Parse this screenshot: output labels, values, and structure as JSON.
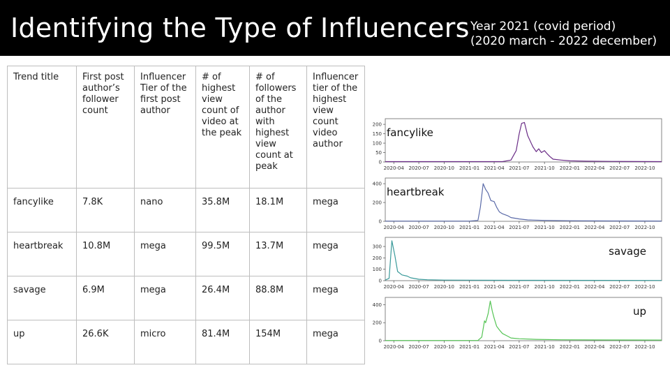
{
  "header": {
    "title": "Identifying the Type of Influencers",
    "subtitle_line1": "Year 2021 (covid period)",
    "subtitle_line2": "(2020 march - 2022 december)"
  },
  "table": {
    "headers": [
      "Trend title",
      "First post author’s follower count",
      "Influencer Tier of the first post author",
      "# of highest view count of video at the peak",
      "# of followers of the author with highest view count at peak",
      "Influencer tier of the highest view count video author"
    ],
    "rows": [
      [
        "fancylike",
        "7.8K",
        "nano",
        "35.8M",
        "18.1M",
        "mega"
      ],
      [
        "heartbreak",
        "10.8M",
        "mega",
        "99.5M",
        "13.7M",
        "mega"
      ],
      [
        "savage",
        "6.9M",
        "mega",
        "26.4M",
        "88.8M",
        "mega"
      ],
      [
        "up",
        "26.6K",
        "micro",
        "81.4M",
        "154M",
        "mega"
      ]
    ]
  },
  "chart_data": [
    {
      "type": "line",
      "label": "fancylike",
      "label_position": "top-left",
      "color": "#6a2c86",
      "ylim": [
        0,
        230
      ],
      "yticks": [
        0,
        50,
        100,
        150,
        200
      ],
      "x_start": "2020-03",
      "x_end": "2022-12",
      "xticks": [
        "2020-04",
        "2020-07",
        "2020-10",
        "2021-01",
        "2021-04",
        "2021-07",
        "2021-10",
        "2022-01",
        "2022-04",
        "2022-07",
        "2022-10"
      ],
      "points": [
        [
          "2020-03",
          2
        ],
        [
          "2021-05",
          2
        ],
        [
          "2021-06",
          10
        ],
        [
          "2021-06-20",
          60
        ],
        [
          "2021-07",
          150
        ],
        [
          "2021-07-10",
          205
        ],
        [
          "2021-07-20",
          210
        ],
        [
          "2021-08",
          140
        ],
        [
          "2021-08-20",
          80
        ],
        [
          "2021-09",
          55
        ],
        [
          "2021-09-10",
          70
        ],
        [
          "2021-09-20",
          50
        ],
        [
          "2021-10",
          60
        ],
        [
          "2021-10-10",
          45
        ],
        [
          "2021-10-20",
          30
        ],
        [
          "2021-11",
          15
        ],
        [
          "2021-12",
          10
        ],
        [
          "2022-01",
          6
        ],
        [
          "2022-03",
          4
        ],
        [
          "2022-06",
          3
        ],
        [
          "2022-12",
          2
        ]
      ]
    },
    {
      "type": "line",
      "label": "heartbreak",
      "label_position": "top-left",
      "color": "#5a6aa8",
      "ylim": [
        0,
        460
      ],
      "yticks": [
        0,
        200,
        400
      ],
      "x_start": "2020-03",
      "x_end": "2022-12",
      "xticks": [
        "2020-04",
        "2020-07",
        "2020-10",
        "2021-01",
        "2021-04",
        "2021-07",
        "2021-10",
        "2022-01",
        "2022-04",
        "2022-07",
        "2022-10"
      ],
      "points": [
        [
          "2020-03",
          2
        ],
        [
          "2021-01",
          2
        ],
        [
          "2021-02",
          10
        ],
        [
          "2021-02-10",
          150
        ],
        [
          "2021-02-20",
          400
        ],
        [
          "2021-03",
          340
        ],
        [
          "2021-03-10",
          300
        ],
        [
          "2021-03-20",
          220
        ],
        [
          "2021-04",
          210
        ],
        [
          "2021-04-10",
          150
        ],
        [
          "2021-04-20",
          100
        ],
        [
          "2021-05",
          80
        ],
        [
          "2021-05-20",
          60
        ],
        [
          "2021-06",
          40
        ],
        [
          "2021-07",
          25
        ],
        [
          "2021-08",
          15
        ],
        [
          "2021-10",
          10
        ],
        [
          "2022-01",
          6
        ],
        [
          "2022-06",
          4
        ],
        [
          "2022-12",
          3
        ]
      ]
    },
    {
      "type": "line",
      "label": "savage",
      "label_position": "top-right",
      "color": "#3a9a9a",
      "ylim": [
        0,
        380
      ],
      "yticks": [
        0,
        100,
        200,
        300
      ],
      "x_start": "2020-03",
      "x_end": "2022-12",
      "xticks": [
        "2020-04",
        "2020-07",
        "2020-10",
        "2021-01",
        "2021-04",
        "2021-07",
        "2021-10",
        "2022-01",
        "2022-04",
        "2022-07",
        "2022-10"
      ],
      "points": [
        [
          "2020-03",
          5
        ],
        [
          "2020-03-15",
          20
        ],
        [
          "2020-03-25",
          350
        ],
        [
          "2020-04-05",
          220
        ],
        [
          "2020-04-15",
          80
        ],
        [
          "2020-05",
          50
        ],
        [
          "2020-05-20",
          40
        ],
        [
          "2020-06",
          25
        ],
        [
          "2020-07",
          12
        ],
        [
          "2020-08",
          8
        ],
        [
          "2020-10",
          5
        ],
        [
          "2021-01",
          4
        ],
        [
          "2021-06",
          3
        ],
        [
          "2022-12",
          2
        ]
      ]
    },
    {
      "type": "line",
      "label": "up",
      "label_position": "top-right",
      "color": "#55c455",
      "ylim": [
        0,
        480
      ],
      "yticks": [
        0,
        200,
        400
      ],
      "x_start": "2020-03",
      "x_end": "2022-12",
      "xticks": [
        "2020-04",
        "2020-07",
        "2020-10",
        "2021-01",
        "2021-04",
        "2021-07",
        "2021-10",
        "2022-01",
        "2022-04",
        "2022-07",
        "2022-10"
      ],
      "points": [
        [
          "2020-03",
          2
        ],
        [
          "2021-02",
          2
        ],
        [
          "2021-02-15",
          40
        ],
        [
          "2021-02-25",
          220
        ],
        [
          "2021-03",
          200
        ],
        [
          "2021-03-10",
          300
        ],
        [
          "2021-03-18",
          440
        ],
        [
          "2021-03-25",
          330
        ],
        [
          "2021-04",
          250
        ],
        [
          "2021-04-10",
          160
        ],
        [
          "2021-04-20",
          120
        ],
        [
          "2021-05",
          80
        ],
        [
          "2021-05-20",
          50
        ],
        [
          "2021-06",
          30
        ],
        [
          "2021-07",
          22
        ],
        [
          "2021-09",
          15
        ],
        [
          "2021-12",
          10
        ],
        [
          "2022-06",
          8
        ],
        [
          "2022-12",
          7
        ]
      ]
    }
  ]
}
